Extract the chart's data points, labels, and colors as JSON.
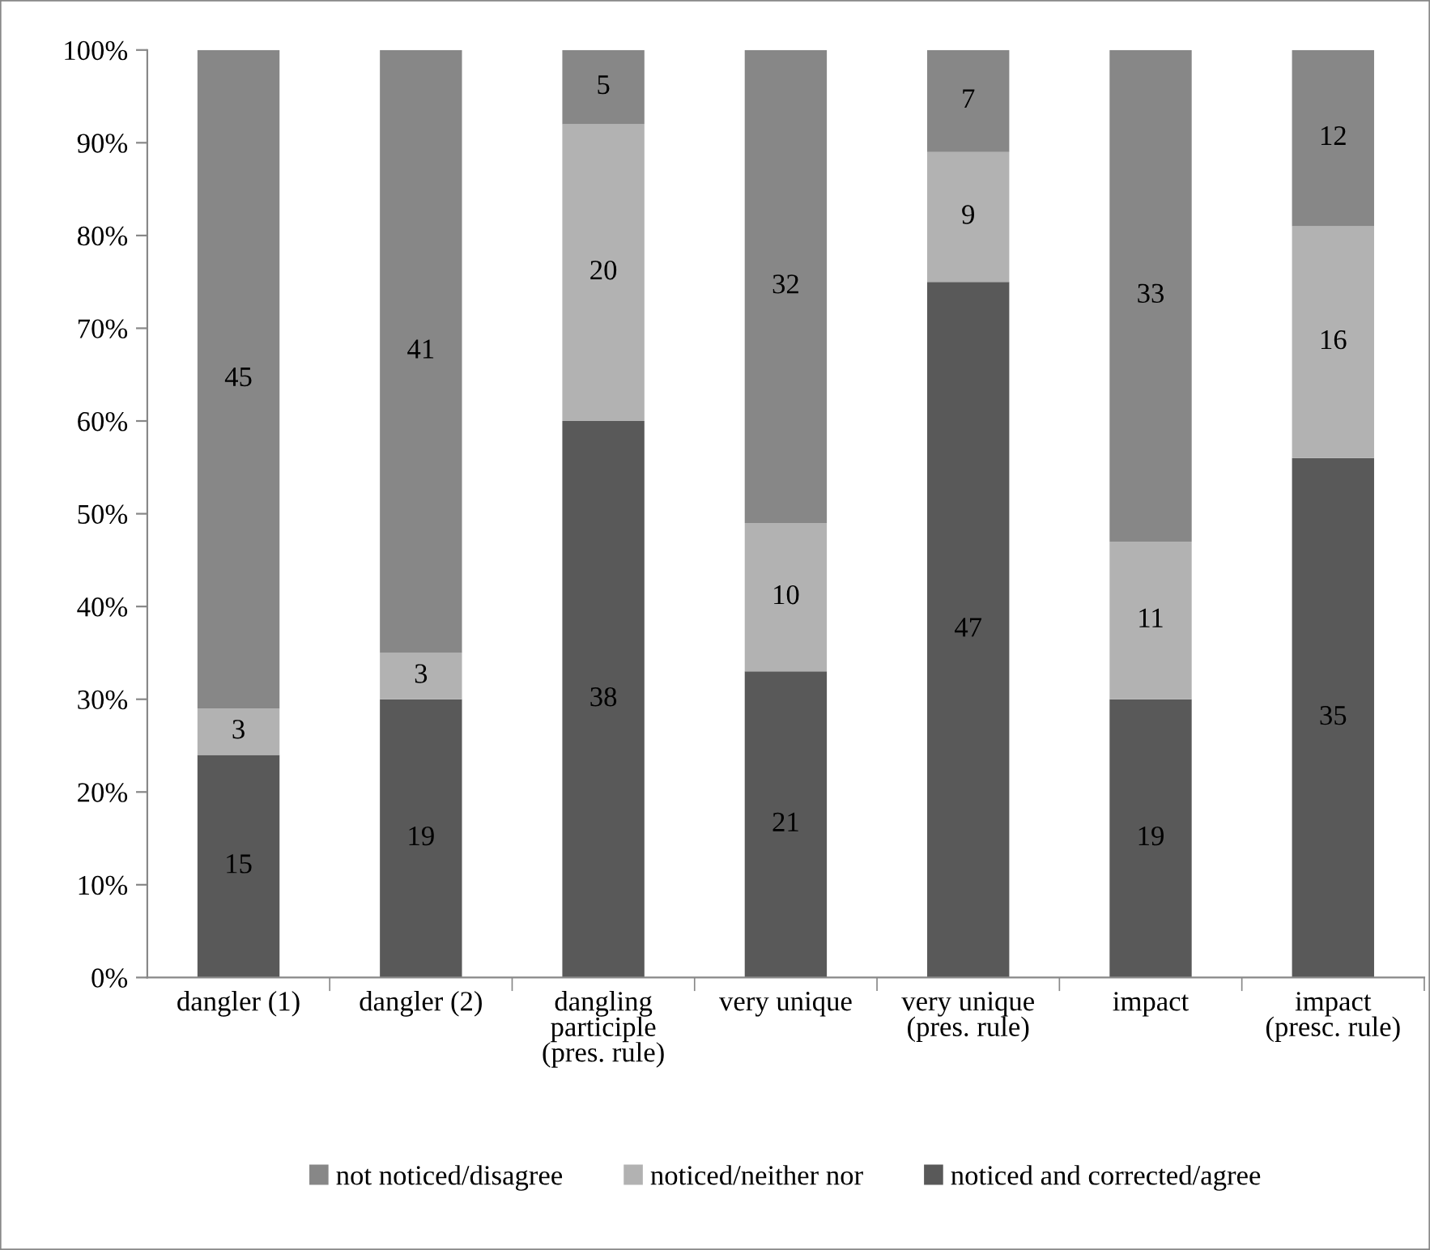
{
  "chart_data": {
    "type": "bar",
    "stacked": true,
    "categories": [
      "dangler (1)",
      "dangler (2)",
      "dangling\nparticiple\n(pres. rule)",
      "very unique",
      "very unique\n(pres. rule)",
      "impact",
      "impact\n(presc. rule)"
    ],
    "series": [
      {
        "name": "noticed and corrected/agree",
        "color": "#595959",
        "values": [
          24,
          30,
          60,
          33,
          75,
          30,
          56
        ]
      },
      {
        "name": "noticed/neither nor",
        "color": "#b2b2b2",
        "values": [
          5,
          5,
          32,
          16,
          14,
          17,
          25
        ]
      },
      {
        "name": "not noticed/disagree",
        "color": "#878787",
        "values": [
          71,
          65,
          8,
          51,
          11,
          53,
          19
        ]
      }
    ],
    "annotations": [
      "15",
      "3",
      "45",
      "19",
      "3",
      "41",
      "38",
      "20",
      "5",
      "21",
      "10",
      "32",
      "47",
      "9",
      "7",
      "19",
      "11",
      "33",
      "35",
      "16",
      "12"
    ],
    "ylim": [
      0,
      100
    ],
    "yticks": [
      {
        "value": 0,
        "label": "0%"
      },
      {
        "value": 10,
        "label": "10%"
      },
      {
        "value": 20,
        "label": "20%"
      },
      {
        "value": 30,
        "label": "30%"
      },
      {
        "value": 40,
        "label": "40%"
      },
      {
        "value": 50,
        "label": "50%"
      },
      {
        "value": 60,
        "label": "60%"
      },
      {
        "value": 70,
        "label": "70%"
      },
      {
        "value": 80,
        "label": "80%"
      },
      {
        "value": 90,
        "label": "90%"
      },
      {
        "value": 100,
        "label": "100%"
      }
    ],
    "grid": false,
    "legend": "bottom"
  }
}
